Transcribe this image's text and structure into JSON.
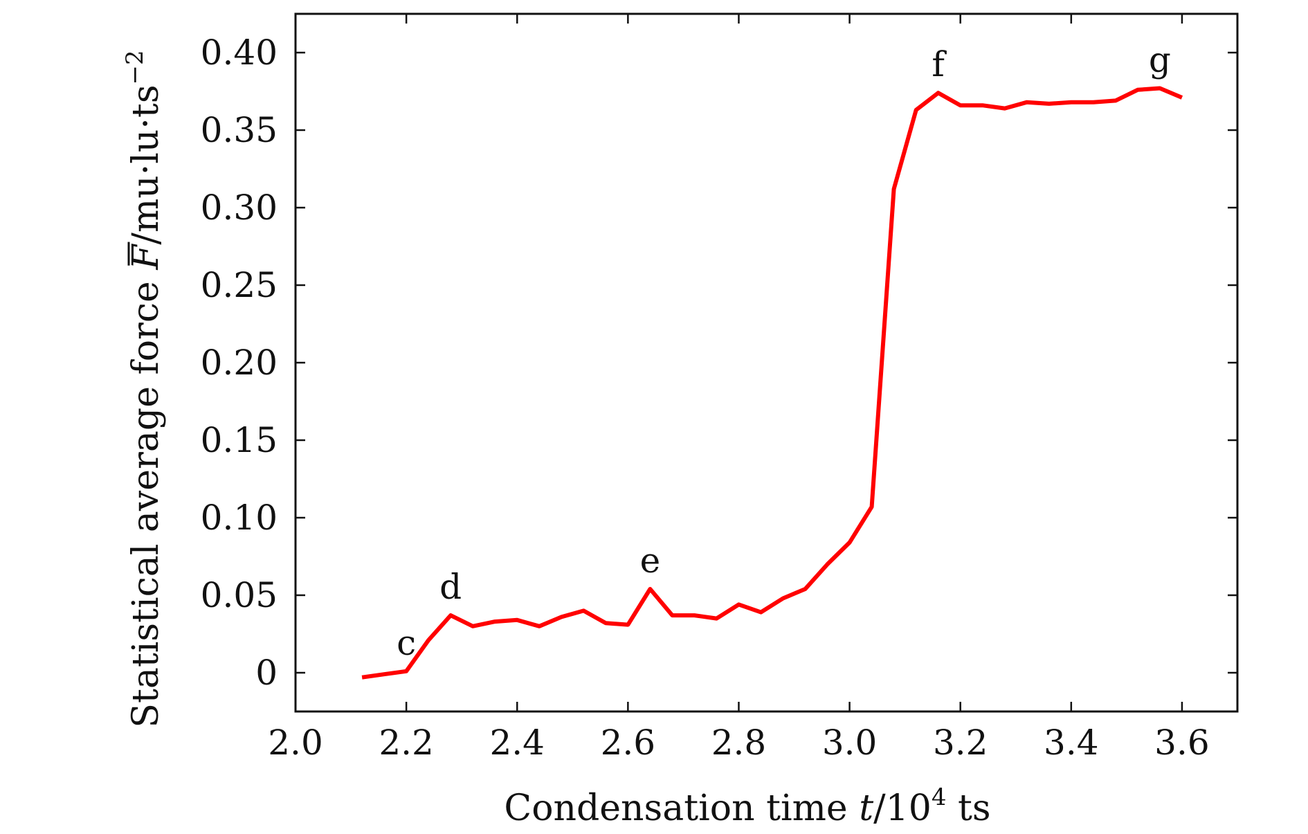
{
  "chart_data": {
    "type": "line",
    "title": "",
    "xlabel": {
      "prefix": "Condensation time ",
      "var": "t",
      "slash": "/10",
      "exp": "4",
      "suffix": " ts"
    },
    "ylabel": {
      "prefix": "Statistical average force ",
      "var": "F",
      "suffix": "/mu·lu·ts",
      "exp": "−2"
    },
    "xlim": [
      2.0,
      3.7
    ],
    "ylim": [
      -0.025,
      0.425
    ],
    "xticks": [
      2.0,
      2.2,
      2.4,
      2.6,
      2.8,
      3.0,
      3.2,
      3.4,
      3.6
    ],
    "xtick_labels": [
      "2.0",
      "2.2",
      "2.4",
      "2.6",
      "2.8",
      "3.0",
      "3.2",
      "3.4",
      "3.6"
    ],
    "yticks": [
      0,
      0.05,
      0.1,
      0.15,
      0.2,
      0.25,
      0.3,
      0.35,
      0.4
    ],
    "ytick_labels": [
      "0",
      "0.05",
      "0.10",
      "0.15",
      "0.20",
      "0.25",
      "0.30",
      "0.35",
      "0.40"
    ],
    "grid": false,
    "series": [
      {
        "name": "F",
        "color": "#ff0000",
        "x": [
          2.12,
          2.16,
          2.2,
          2.24,
          2.28,
          2.32,
          2.36,
          2.4,
          2.44,
          2.48,
          2.52,
          2.56,
          2.6,
          2.64,
          2.68,
          2.72,
          2.76,
          2.8,
          2.84,
          2.88,
          2.92,
          2.96,
          3.0,
          3.04,
          3.08,
          3.12,
          3.16,
          3.2,
          3.24,
          3.28,
          3.32,
          3.36,
          3.4,
          3.44,
          3.48,
          3.52,
          3.56,
          3.6
        ],
        "values": [
          -0.003,
          -0.001,
          0.001,
          0.021,
          0.037,
          0.03,
          0.033,
          0.034,
          0.03,
          0.036,
          0.04,
          0.032,
          0.031,
          0.054,
          0.037,
          0.037,
          0.035,
          0.044,
          0.039,
          0.048,
          0.054,
          0.07,
          0.084,
          0.107,
          0.312,
          0.363,
          0.374,
          0.366,
          0.366,
          0.364,
          0.368,
          0.367,
          0.368,
          0.368,
          0.369,
          0.376,
          0.377,
          0.371
        ]
      }
    ],
    "annotations": [
      {
        "text": "c",
        "x": 2.2,
        "y": 0.001
      },
      {
        "text": "d",
        "x": 2.28,
        "y": 0.037
      },
      {
        "text": "e",
        "x": 2.64,
        "y": 0.054
      },
      {
        "text": "f",
        "x": 3.16,
        "y": 0.374
      },
      {
        "text": "g",
        "x": 3.56,
        "y": 0.377
      }
    ]
  }
}
